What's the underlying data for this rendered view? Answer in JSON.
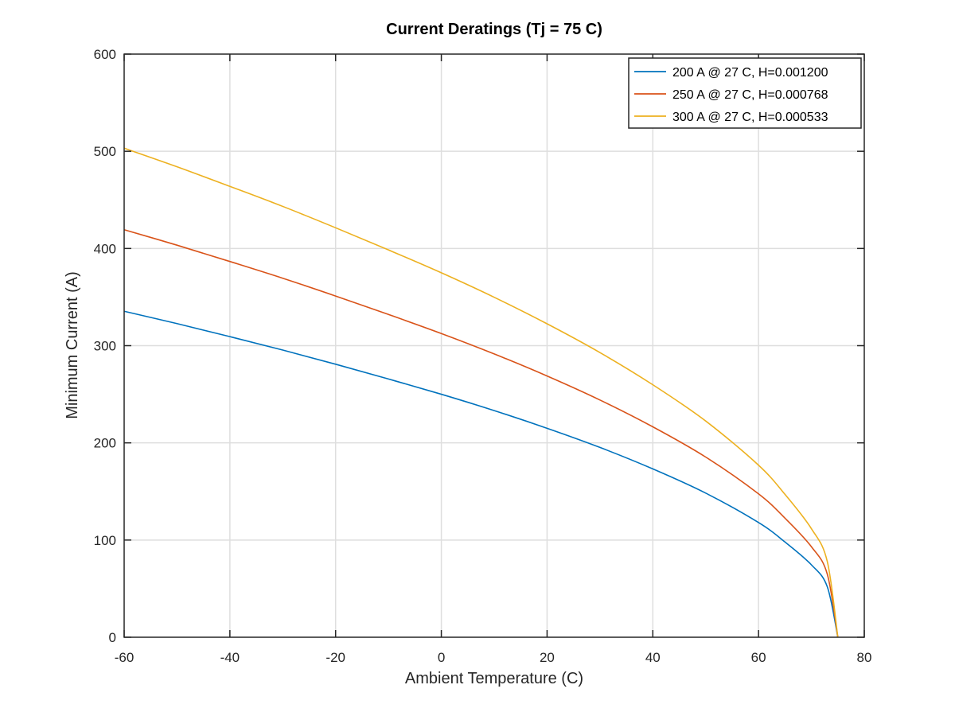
{
  "chart_data": {
    "type": "line",
    "title": "Current Deratings (Tj = 75 C)",
    "xlabel": "Ambient Temperature (C)",
    "ylabel": "Minimum Current (A)",
    "xlim": [
      -60,
      80
    ],
    "ylim": [
      0,
      600
    ],
    "xticks": [
      -60,
      -40,
      -20,
      0,
      20,
      40,
      60,
      80
    ],
    "yticks": [
      0,
      100,
      200,
      300,
      400,
      500,
      600
    ],
    "xtick_labels": [
      "-60",
      "-40",
      "-20",
      "0",
      "20",
      "40",
      "60",
      "80"
    ],
    "ytick_labels": [
      "0",
      "100",
      "200",
      "300",
      "400",
      "500",
      "600"
    ],
    "grid": true,
    "legend_position": "top-right",
    "x": [
      -60,
      -50,
      -40,
      -30,
      -20,
      -10,
      0,
      10,
      20,
      30,
      40,
      50,
      60,
      65,
      70,
      73,
      75
    ],
    "series": [
      {
        "name": "200 A @ 27 C, H=0.001200",
        "color": "#0072BD",
        "values": [
          335.4,
          322.7,
          309.3,
          295.5,
          280.9,
          265.7,
          250.0,
          233.2,
          215.0,
          195.3,
          173.2,
          148.3,
          118.0,
          98.0,
          74.5,
          52.0,
          0
        ]
      },
      {
        "name": "250 A @ 27 C, H=0.000768",
        "color": "#D95319",
        "values": [
          419.3,
          403.4,
          386.6,
          369.4,
          351.1,
          332.1,
          312.5,
          291.5,
          268.8,
          244.1,
          216.5,
          185.4,
          147.5,
          122.5,
          93.1,
          65.0,
          0
        ]
      },
      {
        "name": "300 A @ 27 C, H=0.000533",
        "color": "#EDB120",
        "values": [
          503.2,
          484.1,
          463.9,
          443.3,
          421.3,
          398.5,
          375.0,
          349.8,
          322.5,
          292.9,
          259.8,
          222.5,
          177.0,
          147.0,
          111.7,
          78.0,
          0
        ]
      }
    ]
  }
}
